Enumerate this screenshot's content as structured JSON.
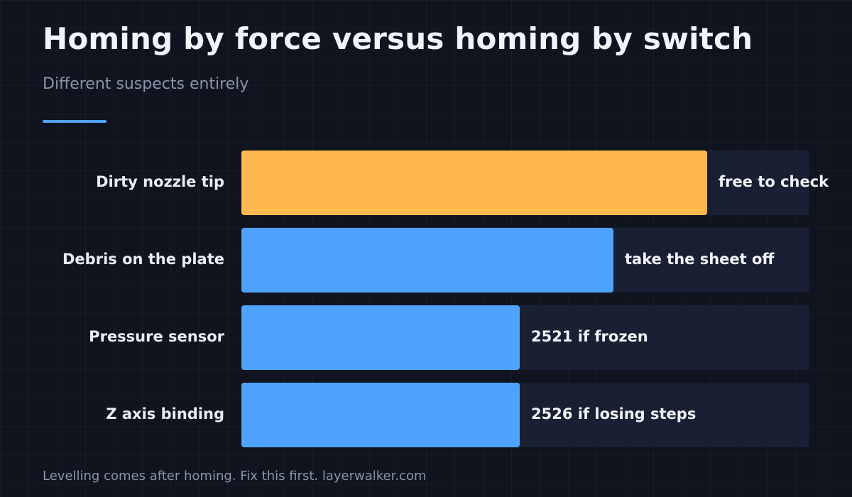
{
  "header": {
    "title": "Homing by force versus homing by switch",
    "subtitle": "Different suspects entirely"
  },
  "colors": {
    "background": "#10141f",
    "accent": "#4fa3ff",
    "highlight": "#ffb84d",
    "track": "#192033"
  },
  "chart_data": {
    "type": "bar",
    "orientation": "horizontal",
    "categories": [
      "Dirty nozzle tip",
      "Debris on the plate",
      "Pressure sensor",
      "Z axis binding"
    ],
    "values": [
      0.82,
      0.655,
      0.49,
      0.49
    ],
    "value_scale": "fraction of full bar",
    "annotations": [
      "free to check",
      "take the sheet off",
      "2521 if frozen",
      "2526 if losing steps"
    ],
    "highlighted_index": 0
  },
  "footer": {
    "text": "Levelling comes after homing. Fix this first. layerwalker.com"
  }
}
